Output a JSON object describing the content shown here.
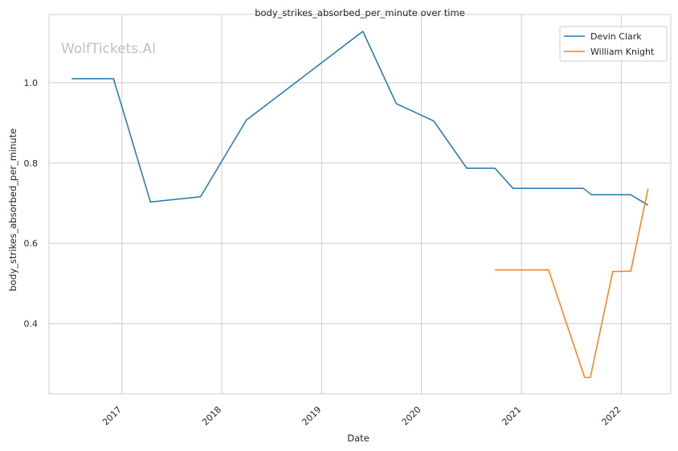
{
  "chart_data": {
    "type": "line",
    "title": "body_strikes_absorbed_per_minute over time",
    "xlabel": "Date",
    "ylabel": "body_strikes_absorbed_per_minute",
    "watermark": "WolfTickets.AI",
    "x_ticks": [
      {
        "label": "2017",
        "value": "2017-01-01"
      },
      {
        "label": "2018",
        "value": "2018-01-01"
      },
      {
        "label": "2019",
        "value": "2019-01-01"
      },
      {
        "label": "2020",
        "value": "2020-01-01"
      },
      {
        "label": "2021",
        "value": "2021-01-01"
      },
      {
        "label": "2022",
        "value": "2022-01-01"
      }
    ],
    "y_ticks": [
      0.4,
      0.6,
      0.8,
      1.0
    ],
    "xlim": [
      "2016-04-09",
      "2022-07-01"
    ],
    "ylim": [
      0.225,
      1.17
    ],
    "grid": true,
    "legend_position": "top-right",
    "series": [
      {
        "name": "Devin Clark",
        "color": "#1f77b4",
        "points": [
          {
            "x": "2016-07-01",
            "y": 1.01
          },
          {
            "x": "2016-12-01",
            "y": 1.01
          },
          {
            "x": "2017-04-15",
            "y": 0.703
          },
          {
            "x": "2017-10-15",
            "y": 0.716
          },
          {
            "x": "2018-04-01",
            "y": 0.907
          },
          {
            "x": "2019-06-01",
            "y": 1.128
          },
          {
            "x": "2019-10-01",
            "y": 0.948
          },
          {
            "x": "2020-02-15",
            "y": 0.905
          },
          {
            "x": "2020-06-15",
            "y": 0.787
          },
          {
            "x": "2020-09-26",
            "y": 0.787
          },
          {
            "x": "2020-12-01",
            "y": 0.737
          },
          {
            "x": "2021-08-15",
            "y": 0.737
          },
          {
            "x": "2021-09-15",
            "y": 0.721
          },
          {
            "x": "2022-02-05",
            "y": 0.721
          },
          {
            "x": "2022-04-09",
            "y": 0.695
          }
        ]
      },
      {
        "name": "William Knight",
        "color": "#ff7f0e",
        "points": [
          {
            "x": "2020-09-26",
            "y": 0.534
          },
          {
            "x": "2021-04-10",
            "y": 0.534
          },
          {
            "x": "2021-08-20",
            "y": 0.266
          },
          {
            "x": "2021-09-10",
            "y": 0.266
          },
          {
            "x": "2021-12-01",
            "y": 0.53
          },
          {
            "x": "2022-02-05",
            "y": 0.531
          },
          {
            "x": "2022-04-09",
            "y": 0.736
          }
        ]
      }
    ]
  }
}
